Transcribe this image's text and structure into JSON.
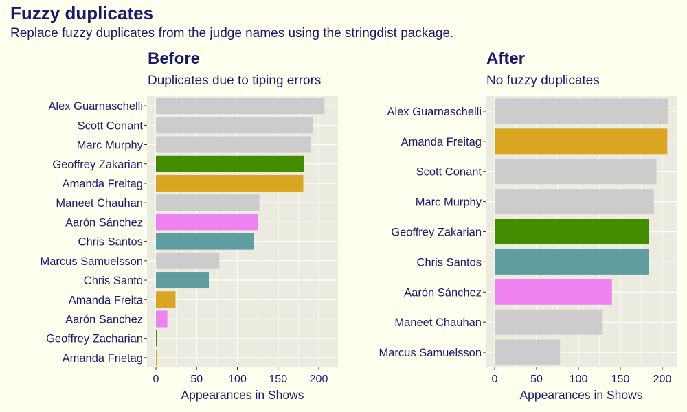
{
  "title": "Fuzzy duplicates",
  "subtitle": "Replace fuzzy duplicates from the judge names using the stringdist package.",
  "colors": {
    "background": "#fffff0",
    "panel": "#ebebe0",
    "text": "#191970",
    "grey": "#cccccc",
    "green": "#458b00",
    "gold": "#daa520",
    "violet": "#ee82ee",
    "teal": "#5f9ea0"
  },
  "chart_data": [
    {
      "type": "bar",
      "orientation": "horizontal",
      "title": "Before",
      "subtitle": "Duplicates due to tiping errors",
      "xlabel": "Appearances in Shows",
      "ylabel": "",
      "xlim": [
        0,
        220
      ],
      "xticks": [
        0,
        50,
        100,
        150,
        200
      ],
      "grid": true,
      "categories": [
        "Alex Guarnaschelli",
        "Scott Conant",
        "Marc Murphy",
        "Geoffrey Zakarian",
        "Amanda Freitag",
        "Maneet Chauhan",
        "Aarón Sánchez",
        "Chris Santos",
        "Marcus Samuelsson",
        "Chris Santo",
        "Amanda Freita",
        "Aarón Sanchez",
        "Geoffrey Zacharian",
        "Amanda Frietag"
      ],
      "values": [
        207,
        193,
        190,
        182,
        181,
        127,
        125,
        120,
        78,
        65,
        24,
        14,
        1,
        1
      ],
      "colors": [
        "#cccccc",
        "#cccccc",
        "#cccccc",
        "#458b00",
        "#daa520",
        "#cccccc",
        "#ee82ee",
        "#5f9ea0",
        "#cccccc",
        "#5f9ea0",
        "#daa520",
        "#ee82ee",
        "#458b00",
        "#daa520"
      ]
    },
    {
      "type": "bar",
      "orientation": "horizontal",
      "title": "After",
      "subtitle": "No fuzzy duplicates",
      "xlabel": "Appearances in Shows",
      "ylabel": "",
      "xlim": [
        0,
        220
      ],
      "xticks": [
        0,
        50,
        100,
        150,
        200
      ],
      "grid": true,
      "categories": [
        "Alex Guarnaschelli",
        "Amanda Freitag",
        "Scott Conant",
        "Marc Murphy",
        "Geoffrey Zakarian",
        "Chris Santos",
        "Aarón Sánchez",
        "Maneet Chauhan",
        "Marcus Samuelsson"
      ],
      "values": [
        207,
        206,
        193,
        190,
        184,
        184,
        140,
        129,
        78
      ],
      "colors": [
        "#cccccc",
        "#daa520",
        "#cccccc",
        "#cccccc",
        "#458b00",
        "#5f9ea0",
        "#ee82ee",
        "#cccccc",
        "#cccccc"
      ]
    }
  ]
}
